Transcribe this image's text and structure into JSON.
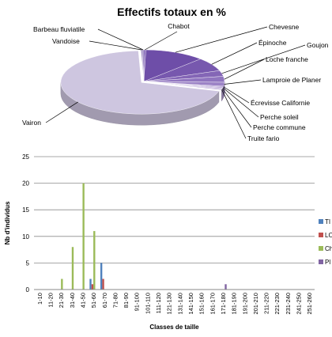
{
  "chart_data": [
    {
      "type": "pie",
      "title": "Effectifs totaux en %",
      "style": "3d-exploded-pie",
      "slices": [
        {
          "label": "Chabot",
          "value": 0.4,
          "color": "#7a5ab2"
        },
        {
          "label": "Chevesne",
          "value": 12.0,
          "color": "#6e4ea8"
        },
        {
          "label": "Épinoche",
          "value": 7.0,
          "color": "#7758ae"
        },
        {
          "label": "Goujon",
          "value": 3.0,
          "color": "#8466b6"
        },
        {
          "label": "Loche franche",
          "value": 3.0,
          "color": "#9075bf"
        },
        {
          "label": "Lamproie de Planer",
          "value": 2.0,
          "color": "#9c83c6"
        },
        {
          "label": "Écrevisse Californie",
          "value": 0.5,
          "color": "#a891cd"
        },
        {
          "label": "Perche soleil",
          "value": 0.5,
          "color": "#b09ad2"
        },
        {
          "label": "Perche commune",
          "value": 0.5,
          "color": "#b8a4d6"
        },
        {
          "label": "Truite fario",
          "value": 0.5,
          "color": "#bfaeda"
        },
        {
          "label": "Vairon",
          "value": 70.0,
          "color": "#cec6e0"
        },
        {
          "label": "Vandoise",
          "value": 0.3,
          "color": "#a592c8"
        },
        {
          "label": "Barbeau fluviatile",
          "value": 0.3,
          "color": "#8c74b8"
        }
      ]
    },
    {
      "type": "bar",
      "xlabel": "Classes de taille",
      "ylabel": "Nb d'individus",
      "ylim": [
        0,
        25
      ],
      "yticks": [
        "0",
        "5",
        "10",
        "15",
        "20",
        "25"
      ],
      "grid": true,
      "legend_position": "right",
      "categories": [
        "1-10",
        "11-20",
        "21-30",
        "31-40",
        "41-50",
        "51-60",
        "61-70",
        "71-80",
        "81-90",
        "91-100",
        "101-110",
        "111-120",
        "121-130",
        "131-140",
        "141-150",
        "151-160",
        "161-170",
        "171-180",
        "181-190",
        "191-200",
        "201-210",
        "211-220",
        "221-230",
        "231-240",
        "241-250",
        "251-260"
      ],
      "series": [
        {
          "name": "TI",
          "color": "#4f81bd",
          "values": [
            0,
            0,
            0,
            0,
            0,
            2,
            5,
            0,
            0,
            0,
            0,
            0,
            0,
            0,
            0,
            0,
            0,
            0,
            0,
            0,
            0,
            0,
            0,
            0,
            0,
            0
          ]
        },
        {
          "name": "LO",
          "color": "#c0504d",
          "values": [
            0,
            0,
            0,
            0,
            0,
            1,
            2,
            0,
            0,
            0,
            0,
            0,
            0,
            0,
            0,
            0,
            0,
            0,
            0,
            0,
            0,
            0,
            0,
            0,
            0,
            0
          ]
        },
        {
          "name": "Ch",
          "color": "#9bbb59",
          "values": [
            0,
            0,
            2,
            8,
            20,
            11,
            0,
            0,
            0,
            0,
            0,
            0,
            0,
            0,
            0,
            0,
            0,
            0,
            0,
            0,
            0,
            0,
            0,
            0,
            0,
            0
          ]
        },
        {
          "name": "Pl",
          "color": "#8064a2",
          "values": [
            0,
            0,
            0,
            0,
            0,
            0,
            0,
            0,
            0,
            0,
            0,
            0,
            0,
            0,
            0,
            0,
            0,
            1,
            0,
            0,
            0,
            0,
            0,
            0,
            0,
            0
          ]
        }
      ]
    }
  ]
}
